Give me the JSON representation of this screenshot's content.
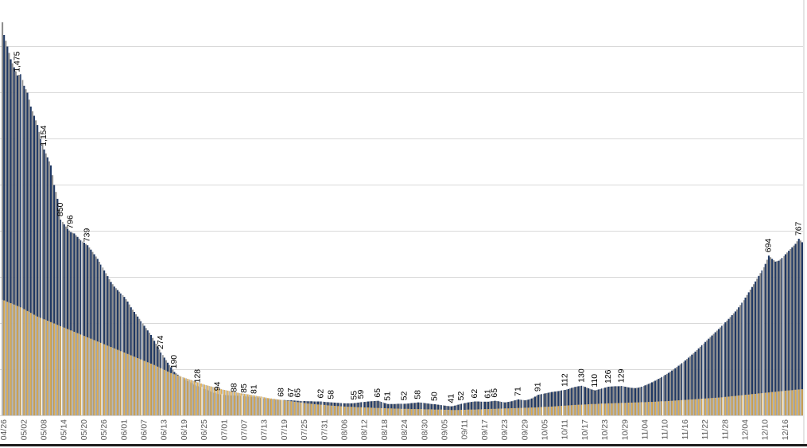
{
  "page": {
    "background": "#ffffff"
  },
  "chart_data": {
    "type": "bar",
    "title": "",
    "days": 240,
    "x_tick_labels": [
      "04/26",
      "05/02",
      "05/08",
      "05/14",
      "05/20",
      "05/26",
      "06/01",
      "06/07",
      "06/13",
      "06/19",
      "06/25",
      "07/01",
      "07/07",
      "07/13",
      "07/19",
      "07/25",
      "07/31",
      "08/06",
      "08/12",
      "08/18",
      "08/24",
      "08/30",
      "09/05",
      "09/11",
      "09/17",
      "09/23",
      "09/29",
      "10/05",
      "10/11",
      "10/17",
      "10/23",
      "10/29",
      "11/04",
      "11/10",
      "11/16",
      "11/22",
      "11/28",
      "12/04",
      "12/10",
      "12/16"
    ],
    "tick_every_days": 6,
    "ylim": [
      0,
      1800
    ],
    "gridline_values": [
      200,
      400,
      600,
      800,
      1000,
      1200,
      1400,
      1600
    ],
    "grid_color": "#d9d9d9",
    "axis_line_color": "#d6d6d6",
    "tick_label_color": "#595959",
    "value_label_color": "#000000",
    "bottom_border_color": "#1c1c1c",
    "right_border_color": "#c9c9c9",
    "separator_color": "#ffffff",
    "series": [
      {
        "name": "primary-dark-bars",
        "color": "#1f3864",
        "shadow_color": "#8e8e8e",
        "values": [
          1650,
          1600,
          1545,
          1510,
          1475,
          1480,
          1430,
          1400,
          1340,
          1300,
          1260,
          1200,
          1154,
          1120,
          1085,
          1000,
          940,
          850,
          830,
          810,
          796,
          790,
          775,
          760,
          750,
          739,
          720,
          700,
          680,
          655,
          630,
          605,
          580,
          560,
          545,
          530,
          515,
          495,
          470,
          450,
          430,
          410,
          390,
          370,
          350,
          325,
          300,
          274,
          252,
          230,
          210,
          190,
          178,
          168,
          158,
          150,
          142,
          135,
          128,
          122,
          116,
          110,
          105,
          99,
          94,
          92,
          90,
          89,
          88,
          88,
          87,
          86,
          85,
          83,
          82,
          81,
          79,
          77,
          75,
          73,
          71,
          70,
          69,
          68,
          68,
          67,
          67,
          66,
          65,
          64,
          64,
          63,
          63,
          62,
          62,
          62,
          60,
          59,
          58,
          57,
          56,
          55,
          54,
          54,
          54,
          55,
          57,
          59,
          60,
          62,
          63,
          64,
          65,
          60,
          55,
          51,
          51,
          51,
          52,
          52,
          52,
          53,
          55,
          56,
          58,
          57,
          55,
          53,
          51,
          50,
          48,
          46,
          44,
          42,
          41,
          44,
          48,
          52,
          55,
          58,
          60,
          62,
          62,
          61,
          61,
          61,
          63,
          65,
          63,
          60,
          58,
          60,
          63,
          67,
          71,
          69,
          67,
          70,
          75,
          83,
          91,
          94,
          97,
          100,
          103,
          105,
          107,
          110,
          112,
          116,
          121,
          125,
          128,
          130,
          125,
          119,
          114,
          110,
          114,
          118,
          122,
          126,
          127,
          128,
          128,
          129,
          126,
          123,
          121,
          120,
          122,
          126,
          132,
          138,
          145,
          152,
          160,
          168,
          177,
          186,
          196,
          206,
          217,
          228,
          240,
          252,
          265,
          278,
          292,
          306,
          320,
          334,
          348,
          362,
          376,
          390,
          405,
          420,
          436,
          452,
          470,
          490,
          512,
          535,
          558,
          582,
          606,
          630,
          658,
          694,
          680,
          668,
          672,
          684,
          700,
          715,
          730,
          745,
          767,
          752
        ],
        "shadow_seed": 1760
      },
      {
        "name": "secondary-gold-bars",
        "color": "#dfae52",
        "shadow_color": "#b8b8b8",
        "values": [
          500,
          494,
          488,
          482,
          476,
          470,
          462,
          454,
          446,
          438,
          430,
          424,
          418,
          412,
          406,
          400,
          394,
          388,
          382,
          376,
          370,
          364,
          358,
          352,
          346,
          340,
          334,
          328,
          322,
          316,
          310,
          304,
          298,
          292,
          286,
          280,
          274,
          268,
          262,
          256,
          250,
          244,
          238,
          232,
          226,
          220,
          213,
          206,
          199,
          192,
          185,
          180,
          175,
          170,
          165,
          160,
          155,
          150,
          145,
          140,
          135,
          131,
          127,
          123,
          119,
          115,
          112,
          109,
          106,
          103,
          100,
          97,
          95,
          93,
          90,
          88,
          85,
          83,
          80,
          77,
          75,
          73,
          71,
          69,
          67,
          65,
          63,
          61,
          59,
          57,
          55,
          53,
          52,
          50,
          49,
          48,
          47,
          45,
          44,
          43,
          42,
          41,
          40,
          39,
          39,
          38,
          37,
          37,
          36,
          36,
          35,
          34,
          34,
          33,
          33,
          32,
          32,
          31,
          31,
          30,
          30,
          30,
          29,
          29,
          29,
          29,
          28,
          28,
          28,
          27,
          27,
          27,
          26,
          26,
          25,
          25,
          25,
          26,
          26,
          27,
          27,
          27,
          28,
          28,
          29,
          29,
          30,
          30,
          31,
          31,
          32,
          32,
          33,
          33,
          34,
          34,
          35,
          35,
          36,
          36,
          37,
          38,
          39,
          39,
          40,
          41,
          42,
          43,
          44,
          45,
          46,
          47,
          48,
          48,
          49,
          50,
          51,
          51,
          52,
          53,
          53,
          54,
          54,
          55,
          55,
          56,
          56,
          57,
          57,
          58,
          58,
          59,
          59,
          60,
          60,
          61,
          62,
          63,
          63,
          64,
          65,
          66,
          67,
          68,
          69,
          70,
          71,
          72,
          73,
          74,
          75,
          76,
          77,
          78,
          79,
          80,
          82,
          83,
          85,
          86,
          88,
          89,
          91,
          92,
          94,
          95,
          97,
          98,
          100,
          101,
          103,
          104,
          106,
          107,
          109,
          110,
          111,
          113,
          114,
          115
        ],
        "shadow_seed": 505
      }
    ],
    "data_labels": [
      {
        "day": 4,
        "text": "1,475"
      },
      {
        "day": 12,
        "text": "1,154"
      },
      {
        "day": 17,
        "text": "850"
      },
      {
        "day": 20,
        "text": "796"
      },
      {
        "day": 25,
        "text": "739"
      },
      {
        "day": 47,
        "text": "274"
      },
      {
        "day": 51,
        "text": "190"
      },
      {
        "day": 58,
        "text": "128"
      },
      {
        "day": 64,
        "text": "94"
      },
      {
        "day": 69,
        "text": "88"
      },
      {
        "day": 72,
        "text": "85"
      },
      {
        "day": 75,
        "text": "81"
      },
      {
        "day": 83,
        "text": "68"
      },
      {
        "day": 86,
        "text": "67"
      },
      {
        "day": 88,
        "text": "65"
      },
      {
        "day": 95,
        "text": "62"
      },
      {
        "day": 98,
        "text": "58"
      },
      {
        "day": 105,
        "text": "55"
      },
      {
        "day": 107,
        "text": "59"
      },
      {
        "day": 112,
        "text": "65"
      },
      {
        "day": 115,
        "text": "51"
      },
      {
        "day": 120,
        "text": "52"
      },
      {
        "day": 124,
        "text": "58"
      },
      {
        "day": 129,
        "text": "50"
      },
      {
        "day": 134,
        "text": "41"
      },
      {
        "day": 137,
        "text": "52"
      },
      {
        "day": 141,
        "text": "62"
      },
      {
        "day": 145,
        "text": "61"
      },
      {
        "day": 147,
        "text": "65"
      },
      {
        "day": 154,
        "text": "71"
      },
      {
        "day": 160,
        "text": "91"
      },
      {
        "day": 168,
        "text": "112"
      },
      {
        "day": 173,
        "text": "130"
      },
      {
        "day": 177,
        "text": "110"
      },
      {
        "day": 181,
        "text": "126"
      },
      {
        "day": 185,
        "text": "129"
      },
      {
        "day": 229,
        "text": "694"
      },
      {
        "day": 238,
        "text": "767"
      }
    ]
  }
}
